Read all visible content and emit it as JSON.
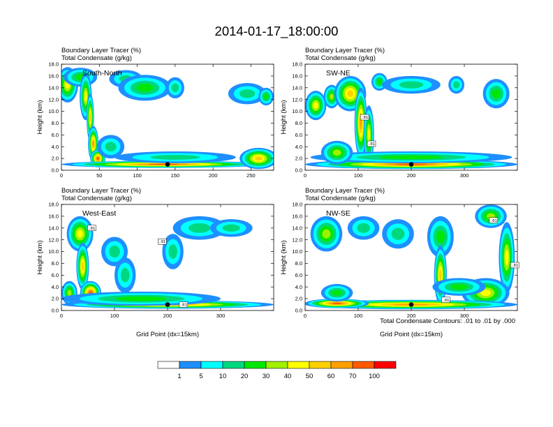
{
  "title": "2014-01-17_18:00:00",
  "chart_data": [
    {
      "type": "heatmap",
      "tag": "South-North",
      "subtitle_line1": "Boundary Layer Tracer   (%)",
      "subtitle_line2": "Total Condensate   (g/kg)",
      "ylabel": "Height (km)",
      "xlabel": "",
      "xlim": [
        0,
        280
      ],
      "ylim": [
        0,
        18
      ],
      "xticks": [
        "0",
        "50",
        "100",
        "150",
        "200",
        "250"
      ],
      "xtick_values": [
        0,
        50,
        100,
        150,
        200,
        250
      ],
      "yticks": [
        "0.0",
        "2.0",
        "4.0",
        "6.0",
        "8.0",
        "10.0",
        "12.0",
        "14.0",
        "16.0",
        "18.0"
      ],
      "marker": {
        "x": 140,
        "y": 1
      },
      "contour_labels": [],
      "blobs": [
        {
          "cx": 8,
          "cy": 14.5,
          "rx": 14,
          "ry": 3,
          "v": 45
        },
        {
          "cx": 25,
          "cy": 15.8,
          "rx": 22,
          "ry": 1.6,
          "v": 20
        },
        {
          "cx": 32,
          "cy": 12.5,
          "rx": 8,
          "ry": 4,
          "v": 40
        },
        {
          "cx": 38,
          "cy": 9,
          "rx": 5,
          "ry": 4,
          "v": 50
        },
        {
          "cx": 42,
          "cy": 4.5,
          "rx": 7,
          "ry": 3,
          "v": 60
        },
        {
          "cx": 48,
          "cy": 2,
          "rx": 10,
          "ry": 1.5,
          "v": 80
        },
        {
          "cx": 65,
          "cy": 4,
          "rx": 18,
          "ry": 2,
          "v": 12
        },
        {
          "cx": 85,
          "cy": 15.5,
          "rx": 22,
          "ry": 1.5,
          "v": 10
        },
        {
          "cx": 110,
          "cy": 14,
          "rx": 35,
          "ry": 2.2,
          "v": 20
        },
        {
          "cx": 150,
          "cy": 14,
          "rx": 12,
          "ry": 1.8,
          "v": 12
        },
        {
          "cx": 135,
          "cy": 1,
          "rx": 135,
          "ry": 0.6,
          "v": 70
        },
        {
          "cx": 150,
          "cy": 2.2,
          "rx": 80,
          "ry": 1,
          "v": 10
        },
        {
          "cx": 260,
          "cy": 2,
          "rx": 25,
          "ry": 1.8,
          "v": 50
        },
        {
          "cx": 245,
          "cy": 13,
          "rx": 25,
          "ry": 1.8,
          "v": 12
        },
        {
          "cx": 270,
          "cy": 12.5,
          "rx": 10,
          "ry": 1.5,
          "v": 25
        }
      ]
    },
    {
      "type": "heatmap",
      "tag": "SW-NE",
      "subtitle_line1": "Boundary Layer Tracer   (%)",
      "subtitle_line2": "Total Condensate   (g/kg)",
      "ylabel": "Height (km)",
      "xlabel": "",
      "xlim": [
        0,
        400
      ],
      "ylim": [
        0,
        18
      ],
      "xticks": [
        "0",
        "100",
        "200",
        "300"
      ],
      "xtick_values": [
        0,
        100,
        200,
        300
      ],
      "yticks": [
        "0.0",
        "2.0",
        "4.0",
        "6.0",
        "8.0",
        "10.0",
        "12.0",
        "14.0",
        "16.0",
        "18.0"
      ],
      "marker": {
        "x": 200,
        "y": 1
      },
      "contour_labels": [
        {
          "text": ".01",
          "x": 112,
          "y": 9
        },
        {
          "text": ".01",
          "x": 125,
          "y": 4.5
        }
      ],
      "blobs": [
        {
          "cx": 20,
          "cy": 11,
          "rx": 20,
          "ry": 2.5,
          "v": 40
        },
        {
          "cx": 50,
          "cy": 12.5,
          "rx": 15,
          "ry": 2,
          "v": 30
        },
        {
          "cx": 85,
          "cy": 13,
          "rx": 30,
          "ry": 3,
          "v": 50
        },
        {
          "cx": 105,
          "cy": 8,
          "rx": 12,
          "ry": 6,
          "v": 60
        },
        {
          "cx": 120,
          "cy": 6,
          "rx": 10,
          "ry": 5,
          "v": 40
        },
        {
          "cx": 140,
          "cy": 15,
          "rx": 15,
          "ry": 1.5,
          "v": 20
        },
        {
          "cx": 200,
          "cy": 14.5,
          "rx": 55,
          "ry": 1.5,
          "v": 12
        },
        {
          "cx": 285,
          "cy": 14.5,
          "rx": 15,
          "ry": 1.5,
          "v": 15
        },
        {
          "cx": 360,
          "cy": 13,
          "rx": 25,
          "ry": 2.5,
          "v": 25
        },
        {
          "cx": 200,
          "cy": 1,
          "rx": 200,
          "ry": 0.8,
          "v": 70
        },
        {
          "cx": 200,
          "cy": 2.2,
          "rx": 190,
          "ry": 1,
          "v": 20
        },
        {
          "cx": 60,
          "cy": 3,
          "rx": 30,
          "ry": 2,
          "v": 35
        }
      ]
    },
    {
      "type": "heatmap",
      "tag": "West-East",
      "subtitle_line1": "Boundary Layer Tracer   (%)",
      "subtitle_line2": "Total Condensate   (g/kg)",
      "ylabel": "Height (km)",
      "xlabel": "Grid Point (dx=15km)",
      "xlim": [
        0,
        400
      ],
      "ylim": [
        0,
        18
      ],
      "xticks": [
        "0",
        "100",
        "200",
        "300"
      ],
      "xtick_values": [
        0,
        100,
        200,
        300
      ],
      "yticks": [
        "0.0",
        "2.0",
        "4.0",
        "6.0",
        "8.0",
        "10.0",
        "12.0",
        "14.0",
        "16.0",
        "18.0"
      ],
      "marker": {
        "x": 200,
        "y": 1
      },
      "contour_labels": [
        {
          "text": ".01",
          "x": 57,
          "y": 14
        },
        {
          "text": ".01",
          "x": 190,
          "y": 11.7
        },
        {
          "text": ".01",
          "x": 230,
          "y": 1
        }
      ],
      "blobs": [
        {
          "cx": 35,
          "cy": 13,
          "rx": 25,
          "ry": 3,
          "v": 40
        },
        {
          "cx": 40,
          "cy": 7.5,
          "rx": 12,
          "ry": 4,
          "v": 50
        },
        {
          "cx": 55,
          "cy": 3,
          "rx": 20,
          "ry": 2,
          "v": 70
        },
        {
          "cx": 15,
          "cy": 3,
          "rx": 15,
          "ry": 2,
          "v": 30
        },
        {
          "cx": 100,
          "cy": 10,
          "rx": 25,
          "ry": 2.5,
          "v": 12
        },
        {
          "cx": 120,
          "cy": 6,
          "rx": 20,
          "ry": 3,
          "v": 15
        },
        {
          "cx": 210,
          "cy": 10,
          "rx": 20,
          "ry": 3,
          "v": 12
        },
        {
          "cx": 260,
          "cy": 14,
          "rx": 50,
          "ry": 2,
          "v": 12
        },
        {
          "cx": 320,
          "cy": 14,
          "rx": 40,
          "ry": 1.5,
          "v": 10
        },
        {
          "cx": 200,
          "cy": 1,
          "rx": 200,
          "ry": 0.7,
          "v": 60
        },
        {
          "cx": 150,
          "cy": 2,
          "rx": 150,
          "ry": 1.2,
          "v": 20
        }
      ]
    },
    {
      "type": "heatmap",
      "tag": "NW-SE",
      "subtitle_line1": "Boundary Layer Tracer   (%)",
      "subtitle_line2": "Total Condensate   (g/kg)",
      "ylabel": "Height (km)",
      "xlabel": "Grid Point (dx=15km)",
      "xlim": [
        0,
        400
      ],
      "ylim": [
        0,
        18
      ],
      "xticks": [
        "0",
        "100",
        "200",
        "300"
      ],
      "xtick_values": [
        0,
        100,
        200,
        300
      ],
      "yticks": [
        "0.0",
        "2.0",
        "4.0",
        "6.0",
        "8.0",
        "10.0",
        "12.0",
        "14.0",
        "16.0",
        "18.0"
      ],
      "marker": {
        "x": 200,
        "y": 1
      },
      "contour_labels": [
        {
          "text": ".01",
          "x": 355,
          "y": 15.3
        },
        {
          "text": ".01",
          "x": 395,
          "y": 7.7
        },
        {
          "text": ".01",
          "x": 265,
          "y": 1.8
        }
      ],
      "blobs": [
        {
          "cx": 40,
          "cy": 13,
          "rx": 30,
          "ry": 3,
          "v": 30
        },
        {
          "cx": 110,
          "cy": 14,
          "rx": 30,
          "ry": 2,
          "v": 15
        },
        {
          "cx": 175,
          "cy": 13,
          "rx": 30,
          "ry": 2.5,
          "v": 12
        },
        {
          "cx": 255,
          "cy": 12.5,
          "rx": 25,
          "ry": 3.5,
          "v": 20
        },
        {
          "cx": 255,
          "cy": 6,
          "rx": 12,
          "ry": 5,
          "v": 50
        },
        {
          "cx": 350,
          "cy": 16,
          "rx": 30,
          "ry": 2,
          "v": 30
        },
        {
          "cx": 380,
          "cy": 9,
          "rx": 15,
          "ry": 6,
          "v": 40
        },
        {
          "cx": 340,
          "cy": 3,
          "rx": 45,
          "ry": 2.5,
          "v": 40
        },
        {
          "cx": 200,
          "cy": 1,
          "rx": 200,
          "ry": 0.8,
          "v": 60
        },
        {
          "cx": 60,
          "cy": 1.2,
          "rx": 60,
          "ry": 0.8,
          "v": 90
        },
        {
          "cx": 60,
          "cy": 3,
          "rx": 30,
          "ry": 1.5,
          "v": 20
        },
        {
          "cx": 290,
          "cy": 4,
          "rx": 50,
          "ry": 1.5,
          "v": 20
        }
      ]
    }
  ],
  "footnote": "Total Condensate Contours: .01 to .01 by .000",
  "colorbar": {
    "levels": [
      "1",
      "5",
      "10",
      "20",
      "30",
      "40",
      "50",
      "60",
      "70",
      "100"
    ],
    "colors": [
      "#ffffff",
      "#1e8fff",
      "#00ffff",
      "#00d77f",
      "#00e800",
      "#a0f000",
      "#ffff00",
      "#ffd000",
      "#ffa000",
      "#ff5a00",
      "#ff0000"
    ]
  }
}
